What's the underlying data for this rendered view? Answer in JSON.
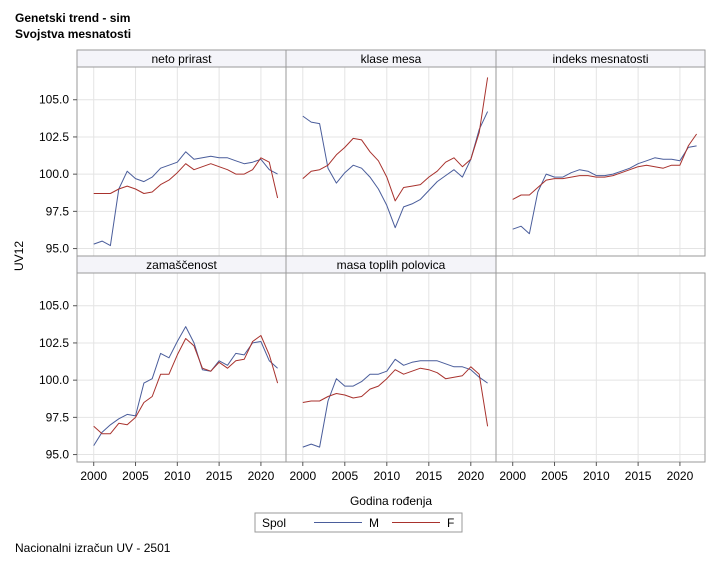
{
  "title": "Genetski trend - sim",
  "subtitle": "Svojstva mesnatosti",
  "footnote": "Nacionalni izračun UV - 2501",
  "colors": {
    "M": "#4a5d9b",
    "F": "#a8322d"
  },
  "chart_data": {
    "type": "line",
    "xlabel": "Godina rođenja",
    "ylabel": "UV12",
    "xlim": [
      1998,
      2023
    ],
    "ylim": [
      94.5,
      107.2
    ],
    "xticks": [
      2000,
      2005,
      2010,
      2015,
      2020
    ],
    "xtick_labels": [
      "2000",
      "2005",
      "2010",
      "2015",
      "2020"
    ],
    "yticks": [
      95.0,
      97.5,
      100.0,
      102.5,
      105.0
    ],
    "ytick_labels": [
      "95.0",
      "97.5",
      "100.0",
      "102.5",
      "105.0"
    ],
    "grid": true,
    "legend": {
      "title": "Spol",
      "position": "bottom-center",
      "entries": [
        "M",
        "F"
      ]
    },
    "x": [
      2000,
      2001,
      2002,
      2003,
      2004,
      2005,
      2006,
      2007,
      2008,
      2009,
      2010,
      2011,
      2012,
      2013,
      2014,
      2015,
      2016,
      2017,
      2018,
      2019,
      2020,
      2021,
      2022
    ],
    "panels": [
      {
        "label": "neto prirast",
        "series": [
          {
            "name": "M",
            "values": [
              95.3,
              95.5,
              95.2,
              99.0,
              100.2,
              99.7,
              99.5,
              99.8,
              100.4,
              100.6,
              100.8,
              101.5,
              101.0,
              101.1,
              101.2,
              101.1,
              101.1,
              100.9,
              100.7,
              100.8,
              101.0,
              100.3,
              100.0
            ]
          },
          {
            "name": "F",
            "values": [
              98.7,
              98.7,
              98.7,
              99.0,
              99.2,
              99.0,
              98.7,
              98.8,
              99.3,
              99.6,
              100.1,
              100.7,
              100.3,
              100.5,
              100.7,
              100.5,
              100.3,
              100.0,
              100.0,
              100.3,
              101.1,
              100.8,
              98.4
            ]
          }
        ]
      },
      {
        "label": "klase mesa",
        "series": [
          {
            "name": "M",
            "values": [
              103.9,
              103.5,
              103.4,
              100.4,
              99.4,
              100.1,
              100.6,
              100.4,
              99.8,
              99.0,
              97.9,
              96.4,
              97.8,
              98.0,
              98.3,
              98.9,
              99.5,
              99.9,
              100.3,
              99.8,
              101.0,
              103.0,
              104.2
            ]
          },
          {
            "name": "F",
            "values": [
              99.7,
              100.2,
              100.3,
              100.6,
              101.3,
              101.8,
              102.4,
              102.3,
              101.5,
              100.9,
              99.8,
              98.2,
              99.1,
              99.2,
              99.3,
              99.8,
              100.2,
              100.8,
              101.1,
              100.5,
              101.0,
              102.8,
              106.5
            ]
          }
        ]
      },
      {
        "label": "indeks mesnatosti",
        "series": [
          {
            "name": "M",
            "values": [
              96.3,
              96.5,
              96.0,
              98.8,
              100.0,
              99.8,
              99.8,
              100.1,
              100.3,
              100.2,
              99.9,
              99.9,
              100.0,
              100.2,
              100.4,
              100.7,
              100.9,
              101.1,
              101.0,
              101.0,
              100.9,
              101.8,
              101.9
            ]
          },
          {
            "name": "F",
            "values": [
              98.3,
              98.6,
              98.6,
              99.1,
              99.6,
              99.7,
              99.7,
              99.8,
              99.9,
              99.9,
              99.8,
              99.8,
              99.9,
              100.1,
              100.3,
              100.5,
              100.6,
              100.5,
              100.4,
              100.6,
              100.6,
              101.9,
              102.7
            ]
          }
        ]
      },
      {
        "label": "zamaščenost",
        "series": [
          {
            "name": "M",
            "values": [
              95.6,
              96.5,
              97.0,
              97.4,
              97.7,
              97.6,
              99.8,
              100.1,
              101.8,
              101.5,
              102.6,
              103.6,
              102.5,
              100.7,
              100.6,
              101.3,
              101.0,
              101.8,
              101.7,
              102.5,
              102.6,
              101.3,
              100.8
            ]
          },
          {
            "name": "F",
            "values": [
              96.9,
              96.4,
              96.4,
              97.1,
              97.0,
              97.5,
              98.5,
              98.9,
              100.4,
              100.4,
              101.7,
              102.8,
              102.3,
              100.8,
              100.6,
              101.2,
              100.8,
              101.3,
              101.4,
              102.6,
              103.0,
              101.7,
              99.8
            ]
          }
        ]
      },
      {
        "label": "masa toplih polovica",
        "series": [
          {
            "name": "M",
            "values": [
              95.5,
              95.7,
              95.5,
              98.6,
              100.1,
              99.6,
              99.6,
              99.9,
              100.4,
              100.4,
              100.6,
              101.4,
              101.0,
              101.2,
              101.3,
              101.3,
              101.3,
              101.1,
              100.9,
              100.9,
              100.7,
              100.2,
              99.8
            ]
          },
          {
            "name": "F",
            "values": [
              98.5,
              98.6,
              98.6,
              98.9,
              99.1,
              99.0,
              98.8,
              98.9,
              99.4,
              99.6,
              100.1,
              100.7,
              100.4,
              100.6,
              100.8,
              100.7,
              100.5,
              100.1,
              100.2,
              100.3,
              100.9,
              100.4,
              96.9
            ]
          }
        ]
      }
    ]
  }
}
